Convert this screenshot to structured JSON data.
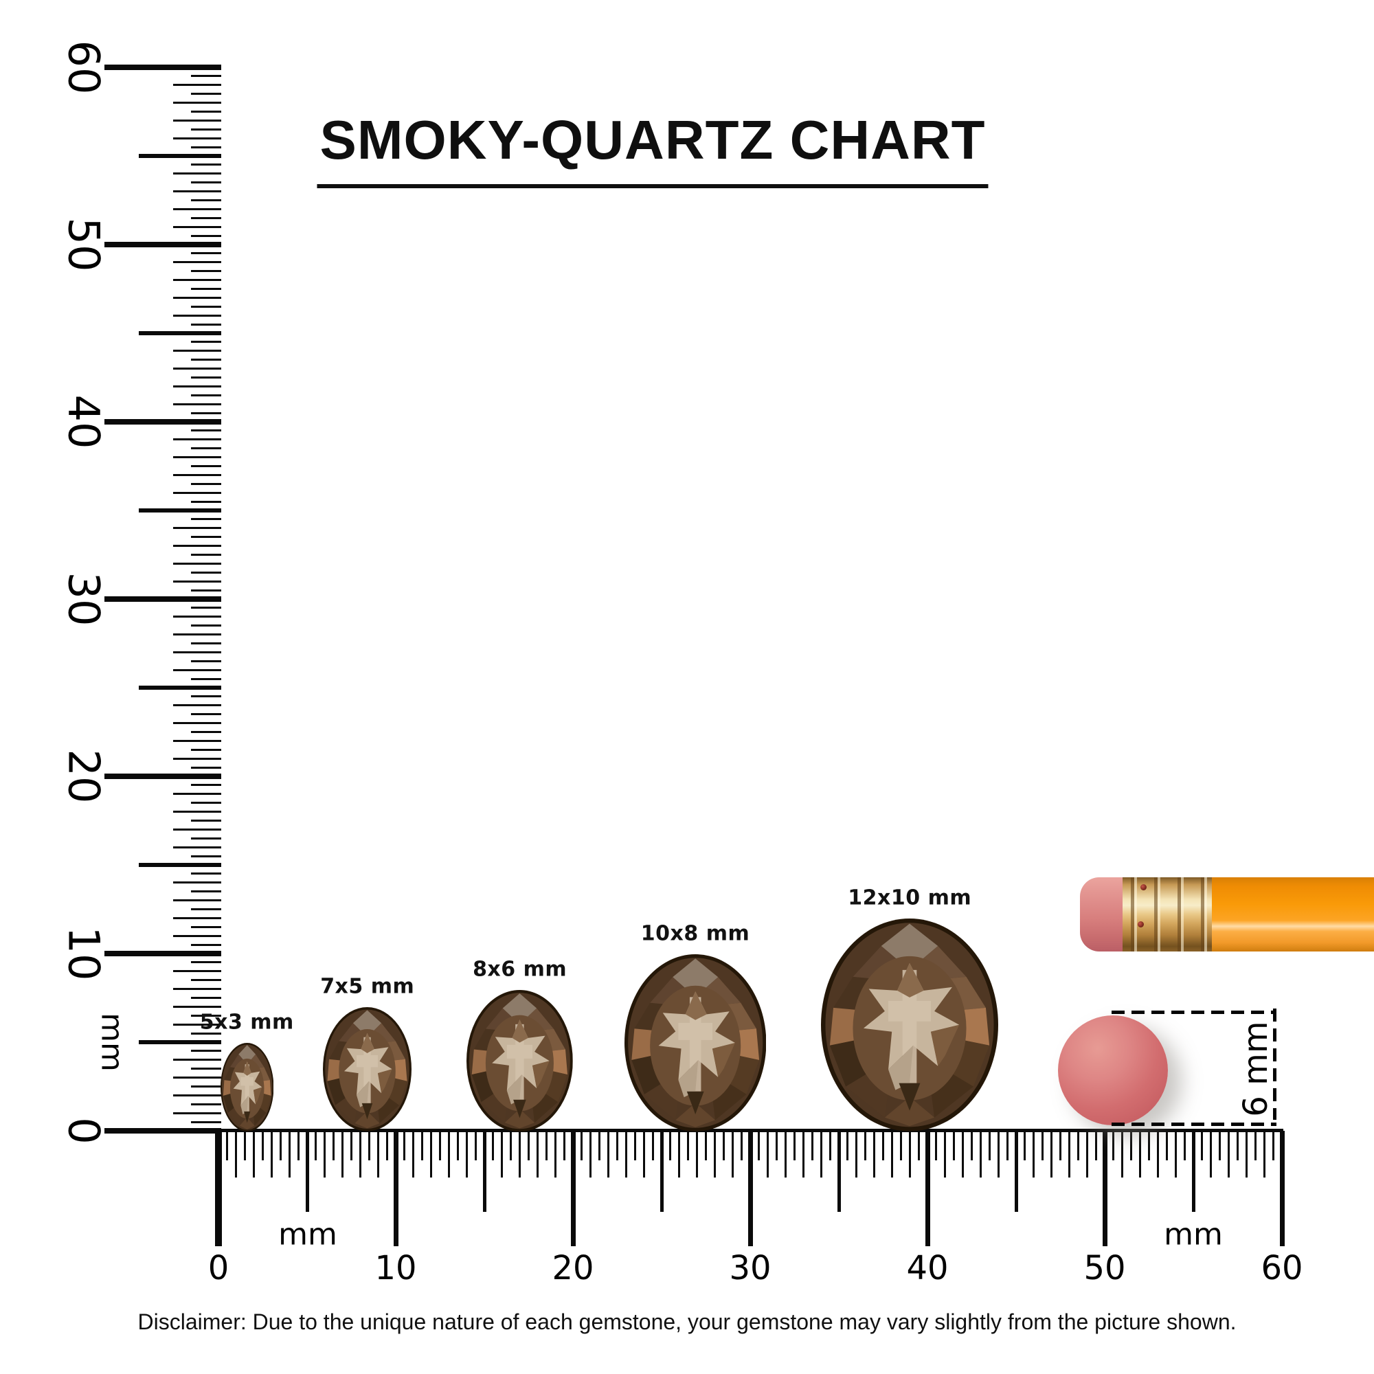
{
  "title": "SMOKY-QUARTZ CHART",
  "rulers": {
    "unit_label": "mm",
    "vertical": {
      "labels": [
        "0",
        "10",
        "20",
        "30",
        "40",
        "50",
        "60"
      ]
    },
    "horizontal": {
      "labels": [
        "0",
        "10",
        "20",
        "30",
        "40",
        "50",
        "60"
      ]
    }
  },
  "gems": [
    {
      "label": "5x3 mm",
      "width_mm": 3,
      "height_mm": 5,
      "center_mm": 1.6
    },
    {
      "label": "7x5 mm",
      "width_mm": 5,
      "height_mm": 7,
      "center_mm": 8.4
    },
    {
      "label": "8x6 mm",
      "width_mm": 6,
      "height_mm": 8,
      "center_mm": 17.0
    },
    {
      "label": "10x8 mm",
      "width_mm": 8,
      "height_mm": 10,
      "center_mm": 26.9
    },
    {
      "label": "12x10 mm",
      "width_mm": 10,
      "height_mm": 12,
      "center_mm": 39.0
    }
  ],
  "eraser_annotation": {
    "label": "6 mm"
  },
  "disclaimer": "Disclaimer: Due to the unique nature of each gemstone, your gemstone may vary slightly from the picture shown.",
  "colors": {
    "ink": "#0d0d0d",
    "pencil_orange": "#f89c0e",
    "pencil_gold": "#dcb369",
    "eraser_pink": "#d2696b",
    "gem_dark": "#2b1c0e",
    "gem_mid": "#6b4d33",
    "gem_light": "#c9b79f"
  }
}
